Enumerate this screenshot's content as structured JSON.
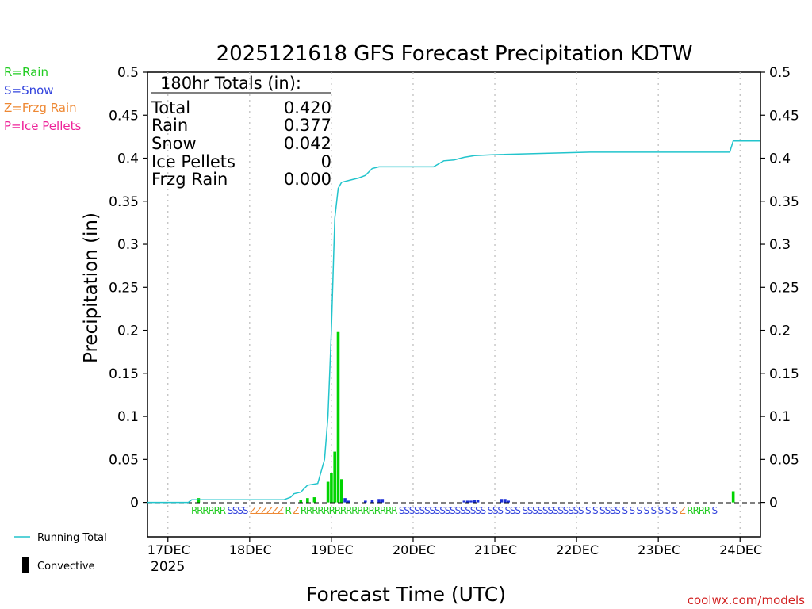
{
  "chart_data": {
    "type": "bar",
    "title": "2025121618 GFS Forecast Precipitation KDTW",
    "ylabel": "Precipitation (in)",
    "xlabel": "Forecast Time (UTC)",
    "ylim": [
      -0.04,
      0.5
    ],
    "xlim_hours": [
      0,
      180
    ],
    "yticks": [
      "0",
      "0.05",
      "0.1",
      "0.15",
      "0.2",
      "0.25",
      "0.3",
      "0.35",
      "0.4",
      "0.45",
      "0.5"
    ],
    "ytick_values": [
      0,
      0.05,
      0.1,
      0.15,
      0.2,
      0.25,
      0.3,
      0.35,
      0.4,
      0.45,
      0.5
    ],
    "xticks": [
      {
        "label": "17DEC",
        "hour": 6
      },
      {
        "label": "18DEC",
        "hour": 30
      },
      {
        "label": "19DEC",
        "hour": 54
      },
      {
        "label": "20DEC",
        "hour": 78
      },
      {
        "label": "21DEC",
        "hour": 102
      },
      {
        "label": "22DEC",
        "hour": 126
      },
      {
        "label": "23DEC",
        "hour": 150
      },
      {
        "label": "24DEC",
        "hour": 174
      }
    ],
    "year_label": "2025",
    "legend": [
      {
        "label": "R=Rain",
        "color": "#22cc22"
      },
      {
        "label": "S=Snow",
        "color": "#3344dd"
      },
      {
        "label": "Z=Frzg Rain",
        "color": "#ee8833"
      },
      {
        "label": "P=Ice Pellets",
        "color": "#ee2299"
      }
    ],
    "line_legend": "Running Total",
    "bar_legend": "Convective",
    "totals": {
      "heading": "180hr Totals (in):",
      "rows": [
        {
          "label": "Total",
          "value": "0.420"
        },
        {
          "label": "Rain",
          "value": "0.377"
        },
        {
          "label": "Snow",
          "value": "0.042"
        },
        {
          "label": "Ice Pellets",
          "value": "0"
        },
        {
          "label": "Frzg Rain",
          "value": "0.000"
        }
      ]
    },
    "series": [
      {
        "name": "Running Total",
        "color": "#22c4cc",
        "points": [
          [
            0,
            0
          ],
          [
            12,
            0
          ],
          [
            13,
            0.003
          ],
          [
            40,
            0.003
          ],
          [
            42,
            0.006
          ],
          [
            43,
            0.01
          ],
          [
            45,
            0.012
          ],
          [
            47,
            0.02
          ],
          [
            50,
            0.022
          ],
          [
            52,
            0.05
          ],
          [
            53,
            0.1
          ],
          [
            54,
            0.2
          ],
          [
            55,
            0.33
          ],
          [
            56,
            0.365
          ],
          [
            57,
            0.372
          ],
          [
            60,
            0.375
          ],
          [
            62,
            0.377
          ],
          [
            64,
            0.38
          ],
          [
            66,
            0.388
          ],
          [
            68,
            0.39
          ],
          [
            84,
            0.39
          ],
          [
            87,
            0.397
          ],
          [
            90,
            0.398
          ],
          [
            93,
            0.401
          ],
          [
            96,
            0.403
          ],
          [
            101,
            0.404
          ],
          [
            130,
            0.407
          ],
          [
            171,
            0.407
          ],
          [
            172,
            0.42
          ],
          [
            180,
            0.42
          ]
        ]
      },
      {
        "name": "Rain bars",
        "color": "#00d400",
        "bars": [
          [
            15,
            0.005
          ],
          [
            45,
            0.003
          ],
          [
            47,
            0.005
          ],
          [
            49,
            0.006
          ],
          [
            53,
            0.024
          ],
          [
            54,
            0.034
          ],
          [
            55,
            0.059
          ],
          [
            56,
            0.198
          ],
          [
            57,
            0.027
          ],
          [
            172,
            0.013
          ]
        ]
      },
      {
        "name": "Snow bars",
        "color": "#1a2ed6",
        "bars": [
          [
            58,
            0.005
          ],
          [
            59,
            0.002
          ],
          [
            64,
            0.002
          ],
          [
            66,
            0.003
          ],
          [
            68,
            0.004
          ],
          [
            69,
            0.004
          ],
          [
            93,
            0.002
          ],
          [
            94,
            0.002
          ],
          [
            95,
            0.002
          ],
          [
            96,
            0.003
          ],
          [
            97,
            0.003
          ],
          [
            104,
            0.004
          ],
          [
            105,
            0.004
          ],
          [
            106,
            0.002
          ]
        ]
      }
    ],
    "ptype_codes": [
      {
        "text": "RRRRRR",
        "color": "#22cc22"
      },
      {
        "text": "SSSS",
        "color": "#3344dd"
      },
      {
        "text": "ZZZZZZ",
        "color": "#ee8833"
      },
      {
        "text": "R",
        "color": "#22cc22"
      },
      {
        "text": "Z",
        "color": "#ee8833"
      },
      {
        "text": "RRRRRRRRRRRRRRRRR",
        "color": "#22cc22"
      },
      {
        "text": "SSSSSSSSSSSSSSSSS",
        "color": "#3344dd"
      },
      {
        "text": "SSS",
        "color": "#3344dd"
      },
      {
        "text": "SSS",
        "color": "#3344dd"
      },
      {
        "text": "SSSSSSSSSSSS",
        "color": "#3344dd"
      },
      {
        "text": "S S",
        "color": "#3344dd"
      },
      {
        "text": "SSSS",
        "color": "#3344dd"
      },
      {
        "text": "S S S",
        "color": "#3344dd"
      },
      {
        "text": "S S",
        "color": "#3344dd"
      },
      {
        "text": "S",
        "color": "#3344dd"
      },
      {
        "text": "S",
        "color": "#3344dd"
      },
      {
        "text": "S",
        "color": "#3344dd"
      },
      {
        "text": "Z",
        "color": "#ee8833"
      },
      {
        "text": "RRRR",
        "color": "#22cc22"
      },
      {
        "text": "S",
        "color": "#3344dd"
      }
    ],
    "credit": "coolwx.com/models"
  }
}
